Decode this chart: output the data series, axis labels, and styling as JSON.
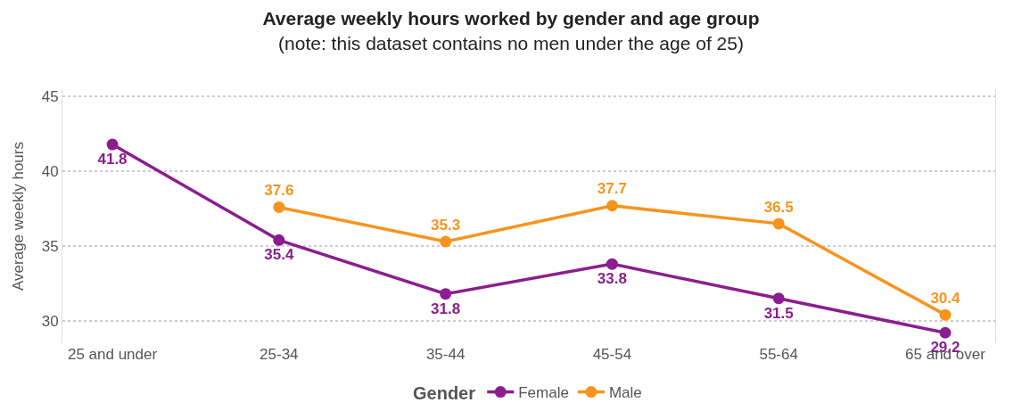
{
  "chart_data": {
    "type": "line",
    "title": "Average weekly hours worked by gender and age group",
    "subtitle": "(note: this dataset contains no men under the age of 25)",
    "ylabel": "Average weekly hours",
    "legend_title": "Gender",
    "categories": [
      "25 and under",
      "25-34",
      "35-44",
      "45-54",
      "55-64",
      "65 and over"
    ],
    "series": [
      {
        "name": "Female",
        "color": "#8b1e8e",
        "values": [
          41.8,
          35.4,
          31.8,
          33.8,
          31.5,
          29.2
        ]
      },
      {
        "name": "Male",
        "color": "#f7941d",
        "values": [
          null,
          37.6,
          35.3,
          37.7,
          36.5,
          30.4
        ]
      }
    ],
    "ylim": [
      28.5,
      45.5
    ],
    "yticks": [
      30,
      35,
      40,
      45
    ],
    "grid": "y",
    "legend": "bottom",
    "marker": "circle",
    "line_style": "solid",
    "data_labels": true
  }
}
